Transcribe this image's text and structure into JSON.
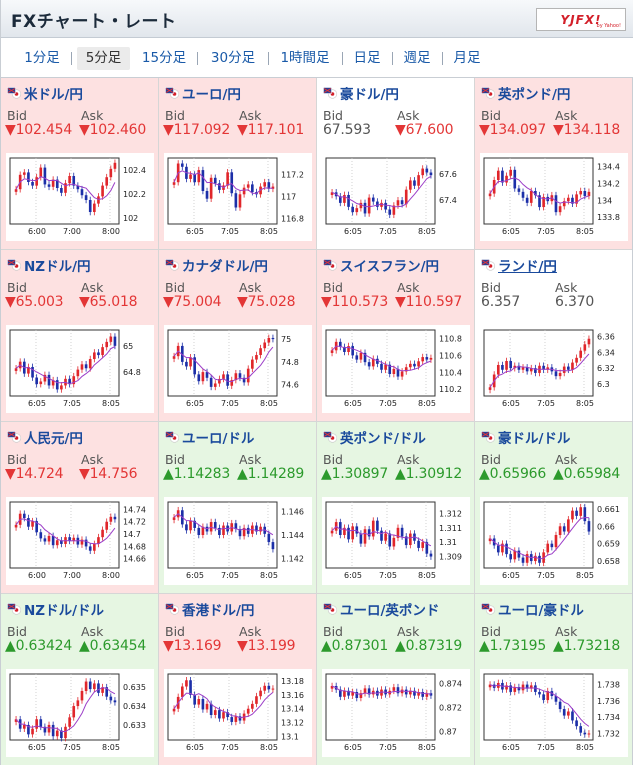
{
  "header": {
    "title": "FXチャート・レート",
    "logo_text": "YJFX!",
    "logo_sub": "by Yahoo!"
  },
  "tabs": [
    "1分足",
    "5分足",
    "15分足",
    "30分足",
    "1時間足",
    "日足",
    "週足",
    "月足"
  ],
  "active_tab": "5分足",
  "labels": {
    "bid": "Bid",
    "ask": "Ask"
  },
  "colors": {
    "up_bg": "#e6f6e2",
    "down_bg": "#fde1e1",
    "candle_up": "#e0262b",
    "candle_down": "#1c2fa8",
    "ma_line": "#9c3ec8"
  },
  "pairs": [
    {
      "name": "米ドル/円",
      "flag": "us-jp-flag-icon",
      "bid": "▼102.454",
      "ask": "▼102.460",
      "trend": "down",
      "chart_data": {
        "type": "candlestick",
        "x_ticks": [
          "6:00",
          "7:00",
          "8:00"
        ],
        "y_ticks": [
          "102.4",
          "102.2",
          "102"
        ],
        "ylim": [
          101.95,
          102.5
        ],
        "closes": [
          102.24,
          102.36,
          102.38,
          102.3,
          102.27,
          102.34,
          102.42,
          102.28,
          102.26,
          102.32,
          102.25,
          102.21,
          102.29,
          102.35,
          102.27,
          102.24,
          102.19,
          102.15,
          102.05,
          102.12,
          102.18,
          102.27,
          102.34,
          102.41,
          102.46
        ]
      }
    },
    {
      "name": "ユーロ/円",
      "flag": "eu-jp-flag-icon",
      "bid": "▼117.092",
      "ask": "▼117.101",
      "trend": "down",
      "chart_data": {
        "type": "candlestick",
        "x_ticks": [
          "6:05",
          "7:05",
          "8:05"
        ],
        "y_ticks": [
          "117.2",
          "117",
          "116.8"
        ],
        "ylim": [
          116.75,
          117.35
        ],
        "closes": [
          117.13,
          117.3,
          117.27,
          117.16,
          117.2,
          117.13,
          117.24,
          117.05,
          116.98,
          117.17,
          117.12,
          117.06,
          117.1,
          117.22,
          117.03,
          116.9,
          117.02,
          117.08,
          117.11,
          117.04,
          117.02,
          117.09,
          117.13,
          117.07,
          117.09
        ]
      }
    },
    {
      "name": "豪ドル/円",
      "flag": "au-jp-flag-icon",
      "bid": "67.593",
      "ask": "▼67.600",
      "trend": "neutral",
      "chart_data": {
        "type": "candlestick",
        "x_ticks": [
          "6:05",
          "7:05",
          "8:05"
        ],
        "y_ticks": [
          "67.6",
          "67.4"
        ],
        "ylim": [
          67.22,
          67.72
        ],
        "closes": [
          67.46,
          67.43,
          67.38,
          67.44,
          67.35,
          67.31,
          67.34,
          67.38,
          67.3,
          67.42,
          67.39,
          67.35,
          67.38,
          67.33,
          67.29,
          67.36,
          67.4,
          67.37,
          67.48,
          67.55,
          67.51,
          67.59,
          67.64,
          67.61,
          67.59
        ]
      }
    },
    {
      "name": "英ポンド/円",
      "flag": "gb-jp-flag-icon",
      "bid": "▼134.097",
      "ask": "▼134.118",
      "trend": "down",
      "chart_data": {
        "type": "candlestick",
        "x_ticks": [
          "6:05",
          "7:05",
          "8:05"
        ],
        "y_ticks": [
          "134.4",
          "134.2",
          "134",
          "133.8"
        ],
        "ylim": [
          133.72,
          134.5
        ],
        "closes": [
          134.08,
          134.24,
          134.35,
          134.21,
          134.29,
          134.36,
          134.14,
          134.1,
          134.03,
          133.97,
          134.11,
          134.06,
          133.92,
          134.04,
          133.99,
          134.06,
          133.86,
          133.93,
          133.99,
          134.03,
          133.96,
          134.07,
          134.11,
          134.05,
          134.1
        ]
      }
    },
    {
      "name": "NZドル/円",
      "flag": "nz-jp-flag-icon",
      "bid": "▼65.003",
      "ask": "▼65.018",
      "trend": "down",
      "chart_data": {
        "type": "candlestick",
        "x_ticks": [
          "6:05",
          "7:05",
          "8:05"
        ],
        "y_ticks": [
          "65",
          "64.8"
        ],
        "ylim": [
          64.62,
          65.12
        ],
        "closes": [
          64.83,
          64.88,
          64.79,
          64.84,
          64.76,
          64.71,
          64.73,
          64.78,
          64.7,
          64.74,
          64.67,
          64.7,
          64.75,
          64.71,
          64.77,
          64.82,
          64.86,
          64.83,
          64.9,
          64.95,
          64.93,
          64.99,
          65.03,
          65.07,
          65.0
        ]
      }
    },
    {
      "name": "カナダドル/円",
      "flag": "ca-jp-flag-icon",
      "bid": "▼75.004",
      "ask": "▼75.028",
      "trend": "down",
      "chart_data": {
        "type": "candlestick",
        "x_ticks": [
          "6:05",
          "7:05",
          "8:05"
        ],
        "y_ticks": [
          "75",
          "74.8",
          "74.6"
        ],
        "ylim": [
          74.5,
          75.08
        ],
        "closes": [
          74.85,
          74.94,
          74.8,
          74.76,
          74.84,
          74.69,
          74.63,
          74.71,
          74.66,
          74.58,
          74.61,
          74.65,
          74.69,
          74.59,
          74.64,
          74.7,
          74.66,
          74.62,
          74.74,
          74.82,
          74.86,
          74.92,
          74.97,
          75.01,
          75.0
        ]
      }
    },
    {
      "name": "スイスフラン/円",
      "flag": "ch-jp-flag-icon",
      "bid": "▼110.573",
      "ask": "▼110.597",
      "trend": "down",
      "chart_data": {
        "type": "candlestick",
        "x_ticks": [
          "6:05",
          "7:05",
          "8:05"
        ],
        "y_ticks": [
          "110.8",
          "110.6",
          "110.4",
          "110.2"
        ],
        "ylim": [
          110.12,
          110.9
        ],
        "closes": [
          110.66,
          110.76,
          110.7,
          110.64,
          110.71,
          110.6,
          110.55,
          110.63,
          110.52,
          110.47,
          110.56,
          110.5,
          110.43,
          110.49,
          110.38,
          110.44,
          110.35,
          110.41,
          110.46,
          110.5,
          110.47,
          110.53,
          110.58,
          110.55,
          110.57
        ]
      }
    },
    {
      "name": "ランド/円",
      "flag": "za-jp-flag-icon",
      "bid": "6.357",
      "ask": "6.370",
      "trend": "neutral",
      "chart_data": {
        "type": "candlestick",
        "x_ticks": [
          "6:05",
          "7:05",
          "8:05"
        ],
        "y_ticks": [
          "6.36",
          "6.34",
          "6.32",
          "6.3"
        ],
        "ylim": [
          6.285,
          6.368
        ],
        "closes": [
          6.296,
          6.312,
          6.324,
          6.318,
          6.329,
          6.32,
          6.323,
          6.318,
          6.321,
          6.316,
          6.32,
          6.314,
          6.323,
          6.318,
          6.321,
          6.316,
          6.31,
          6.314,
          6.322,
          6.318,
          6.327,
          6.333,
          6.342,
          6.35,
          6.357
        ]
      }
    },
    {
      "name": "人民元/円",
      "flag": "cn-jp-flag-icon",
      "bid": "▼14.724",
      "ask": "▼14.756",
      "trend": "down",
      "chart_data": {
        "type": "candlestick",
        "x_ticks": [
          "6:00",
          "7:00",
          "8:00"
        ],
        "y_ticks": [
          "14.74",
          "14.72",
          "14.7",
          "14.68",
          "14.66"
        ],
        "ylim": [
          14.645,
          14.752
        ],
        "closes": [
          14.715,
          14.733,
          14.726,
          14.712,
          14.721,
          14.703,
          14.693,
          14.688,
          14.697,
          14.682,
          14.69,
          14.684,
          14.695,
          14.689,
          14.694,
          14.683,
          14.691,
          14.68,
          14.673,
          14.684,
          14.695,
          14.707,
          14.72,
          14.728,
          14.724
        ]
      }
    },
    {
      "name": "ユーロ/ドル",
      "flag": "eu-us-flag-icon",
      "bid": "▲1.14283",
      "ask": "▲1.14289",
      "trend": "up",
      "chart_data": {
        "type": "candlestick",
        "x_ticks": [
          "6:05",
          "7:05",
          "8:05"
        ],
        "y_ticks": [
          "1.146",
          "1.144",
          "1.142"
        ],
        "ylim": [
          1.1412,
          1.1468
        ],
        "closes": [
          1.1455,
          1.1461,
          1.1449,
          1.1444,
          1.1452,
          1.1446,
          1.144,
          1.1447,
          1.1443,
          1.1451,
          1.1446,
          1.144,
          1.1448,
          1.1443,
          1.145,
          1.1445,
          1.1439,
          1.1446,
          1.1441,
          1.1448,
          1.1443,
          1.1447,
          1.1441,
          1.1434,
          1.1428
        ]
      }
    },
    {
      "name": "英ポンド/ドル",
      "flag": "gb-us-flag-icon",
      "bid": "▲1.30897",
      "ask": "▲1.30912",
      "trend": "up",
      "chart_data": {
        "type": "candlestick",
        "x_ticks": [
          "6:05",
          "7:05",
          "8:05"
        ],
        "y_ticks": [
          "1.312",
          "1.311",
          "1.31",
          "1.309"
        ],
        "ylim": [
          1.3082,
          1.3128
        ],
        "closes": [
          1.3108,
          1.3114,
          1.3105,
          1.311,
          1.3102,
          1.3111,
          1.3106,
          1.3099,
          1.3109,
          1.3104,
          1.3115,
          1.3108,
          1.3101,
          1.3106,
          1.3097,
          1.3103,
          1.311,
          1.3104,
          1.3098,
          1.3106,
          1.3101,
          1.3096,
          1.31,
          1.3092,
          1.309
        ]
      }
    },
    {
      "name": "豪ドル/ドル",
      "flag": "au-us-flag-icon",
      "bid": "▲0.65966",
      "ask": "▲0.65984",
      "trend": "up",
      "chart_data": {
        "type": "candlestick",
        "x_ticks": [
          "6:05",
          "7:05",
          "8:05"
        ],
        "y_ticks": [
          "0.661",
          "0.66",
          "0.659",
          "0.658"
        ],
        "ylim": [
          0.6576,
          0.6614
        ],
        "closes": [
          0.6593,
          0.6589,
          0.6585,
          0.659,
          0.6584,
          0.6581,
          0.6586,
          0.6582,
          0.6579,
          0.6584,
          0.658,
          0.6583,
          0.6579,
          0.6585,
          0.659,
          0.6588,
          0.6595,
          0.66,
          0.6597,
          0.6604,
          0.6609,
          0.6606,
          0.6611,
          0.6603,
          0.6597
        ]
      }
    },
    {
      "name": "NZドル/ドル",
      "flag": "nz-us-flag-icon",
      "bid": "▲0.63424",
      "ask": "▲0.63454",
      "trend": "up",
      "chart_data": {
        "type": "candlestick",
        "x_ticks": [
          "6:05",
          "7:05",
          "8:05"
        ],
        "y_ticks": [
          "0.635",
          "0.634",
          "0.633"
        ],
        "ylim": [
          0.6322,
          0.6357
        ],
        "closes": [
          0.6333,
          0.6328,
          0.633,
          0.6325,
          0.6328,
          0.6333,
          0.6329,
          0.6326,
          0.633,
          0.6324,
          0.6327,
          0.6323,
          0.6329,
          0.6334,
          0.634,
          0.6343,
          0.6348,
          0.6353,
          0.6349,
          0.6352,
          0.6347,
          0.635,
          0.6345,
          0.6343,
          0.6342
        ]
      }
    },
    {
      "name": "香港ドル/円",
      "flag": "hk-jp-flag-icon",
      "bid": "▼13.169",
      "ask": "▼13.199",
      "trend": "down",
      "chart_data": {
        "type": "candlestick",
        "x_ticks": [
          "6:05",
          "7:05",
          "8:05"
        ],
        "y_ticks": [
          "13.18",
          "13.16",
          "13.14",
          "13.12",
          "13.1"
        ],
        "ylim": [
          13.095,
          13.19
        ],
        "closes": [
          13.14,
          13.157,
          13.172,
          13.181,
          13.16,
          13.146,
          13.154,
          13.139,
          13.147,
          13.131,
          13.138,
          13.126,
          13.135,
          13.128,
          13.121,
          13.129,
          13.123,
          13.133,
          13.14,
          13.147,
          13.158,
          13.166,
          13.173,
          13.168,
          13.169
        ]
      }
    },
    {
      "name": "ユーロ/英ポンド",
      "flag": "eu-gb-flag-icon",
      "bid": "▲0.87301",
      "ask": "▲0.87319",
      "trend": "up",
      "chart_data": {
        "type": "candlestick",
        "x_ticks": [
          "6:05",
          "7:05",
          "8:05"
        ],
        "y_ticks": [
          "0.874",
          "0.872",
          "0.87"
        ],
        "ylim": [
          0.8693,
          0.8748
        ],
        "closes": [
          0.8738,
          0.8735,
          0.8729,
          0.8734,
          0.873,
          0.8733,
          0.8728,
          0.8732,
          0.8736,
          0.8731,
          0.8734,
          0.873,
          0.8735,
          0.8731,
          0.8734,
          0.8737,
          0.8732,
          0.8735,
          0.8731,
          0.8734,
          0.873,
          0.8733,
          0.8729,
          0.8732,
          0.873
        ]
      }
    },
    {
      "name": "ユーロ/豪ドル",
      "flag": "eu-au-flag-icon",
      "bid": "▲1.73195",
      "ask": "▲1.73218",
      "trend": "up",
      "chart_data": {
        "type": "candlestick",
        "x_ticks": [
          "6:05",
          "7:05",
          "8:05"
        ],
        "y_ticks": [
          "1.738",
          "1.736",
          "1.734",
          "1.732"
        ],
        "ylim": [
          1.7312,
          1.7393
        ],
        "closes": [
          1.738,
          1.7376,
          1.7382,
          1.7374,
          1.7379,
          1.7371,
          1.7377,
          1.7373,
          1.738,
          1.7375,
          1.7379,
          1.7371,
          1.7368,
          1.7361,
          1.7372,
          1.7366,
          1.7359,
          1.735,
          1.7342,
          1.7347,
          1.7336,
          1.7329,
          1.7321,
          1.7319,
          1.732
        ]
      }
    }
  ]
}
